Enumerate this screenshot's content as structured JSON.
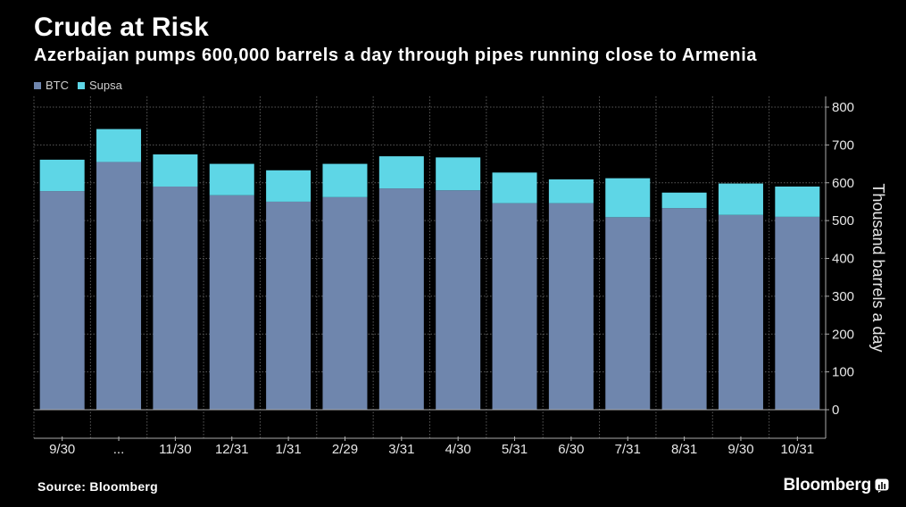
{
  "header": {
    "title": "Crude at Risk",
    "subtitle": "Azerbaijan pumps 600,000 barrels a day through pipes running close to Armenia"
  },
  "legend": {
    "items": [
      {
        "label": "BTC",
        "color": "#6f86ad"
      },
      {
        "label": "Supsa",
        "color": "#5ed6e6"
      }
    ]
  },
  "footer": {
    "source": "Source: Bloomberg",
    "brand": "Bloomberg",
    "brand_icon": "bloomberg-chart-icon"
  },
  "chart_data": {
    "type": "bar",
    "stacked": true,
    "categories": [
      "9/30",
      "...",
      "11/30",
      "12/31",
      "1/31",
      "2/29",
      "3/31",
      "4/30",
      "5/31",
      "6/30",
      "7/31",
      "8/31",
      "9/30",
      "10/31"
    ],
    "series": [
      {
        "name": "BTC",
        "color": "#6f86ad",
        "values": [
          578,
          655,
          590,
          567,
          550,
          562,
          585,
          580,
          546,
          546,
          509,
          533,
          515,
          510
        ]
      },
      {
        "name": "Supsa",
        "color": "#5ed6e6",
        "values": [
          83,
          87,
          85,
          83,
          83,
          88,
          85,
          87,
          81,
          63,
          103,
          41,
          83,
          80
        ]
      }
    ],
    "ylabel": "Thousand barrels a day",
    "yticks": [
      0,
      100,
      200,
      300,
      400,
      500,
      600,
      700,
      800
    ],
    "ylim": [
      -75,
      830
    ],
    "y_axis_position": "right",
    "grid": true
  }
}
